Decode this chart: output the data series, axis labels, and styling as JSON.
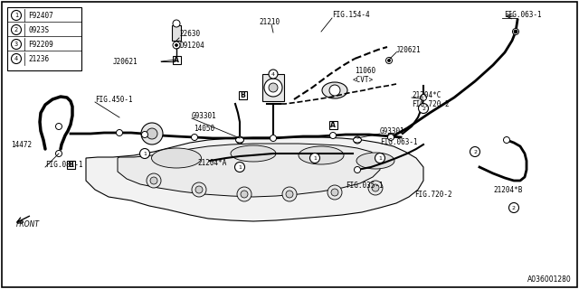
{
  "bg_color": "#ffffff",
  "bottom_label": "A036001280",
  "legend_items": [
    {
      "num": "1",
      "label": "F92407"
    },
    {
      "num": "2",
      "label": "0923S"
    },
    {
      "num": "3",
      "label": "F92209"
    },
    {
      "num": "4",
      "label": "21236"
    }
  ],
  "labels": [
    [
      195,
      38,
      "22630",
      "left"
    ],
    [
      193,
      52,
      "D91204",
      "left"
    ],
    [
      152,
      68,
      "J20621",
      "left"
    ],
    [
      298,
      28,
      "21210",
      "center"
    ],
    [
      370,
      22,
      "FIG.154-4",
      "left"
    ],
    [
      447,
      55,
      "J20621",
      "left"
    ],
    [
      558,
      18,
      "FIG.063-1",
      "left"
    ],
    [
      405,
      80,
      "11060",
      "left"
    ],
    [
      403,
      90,
      "<CVT>",
      "left"
    ],
    [
      462,
      108,
      "21204*C",
      "left"
    ],
    [
      462,
      118,
      "FIG.720-2",
      "left"
    ],
    [
      105,
      112,
      "FIG.450-1",
      "left"
    ],
    [
      212,
      130,
      "G93301",
      "left"
    ],
    [
      215,
      145,
      "14050",
      "left"
    ],
    [
      425,
      148,
      "G93301",
      "left"
    ],
    [
      427,
      160,
      "FIG.063-1",
      "left"
    ],
    [
      12,
      162,
      "14472",
      "left"
    ],
    [
      52,
      182,
      "FIG.081-1",
      "left"
    ],
    [
      218,
      182,
      "21204*A",
      "left"
    ],
    [
      385,
      208,
      "FIG.035-1",
      "left"
    ],
    [
      465,
      218,
      "FIG.720-2",
      "left"
    ],
    [
      549,
      213,
      "21204*B",
      "left"
    ],
    [
      18,
      246,
      "FRONT",
      "left"
    ]
  ]
}
